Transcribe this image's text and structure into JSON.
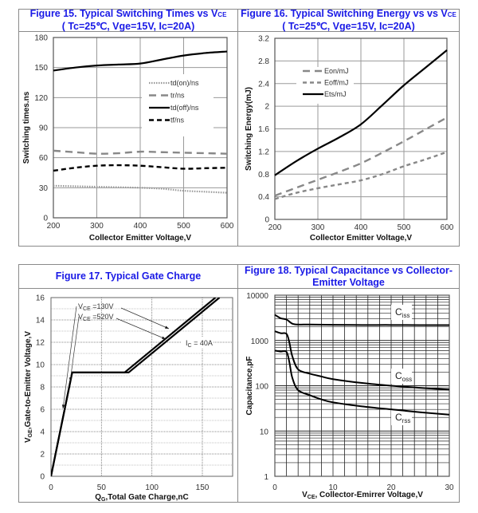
{
  "figures": {
    "fig15": {
      "title_line1": "Figure 15. Typical Switching Times vs V",
      "title_sub": "CE",
      "title_line2": "( Tc=25℃, Vge=15V, Ic=20A)"
    },
    "fig16": {
      "title_line1": "Figure 16. Typical Switching Energy vs vs V",
      "title_sub": "CE",
      "title_line2": "( Tc=25℃, Vge=15V, Ic=20A)"
    },
    "fig17": {
      "title_line1": "Figure 17. Typical Gate Charge"
    },
    "fig18": {
      "title_line1": "Figure 18. Typical Capacitance vs Collector-",
      "title_line2": "Emitter Voltage"
    }
  },
  "colors": {
    "title_blue": "#1a1ae6",
    "grid": "#9a9a9a",
    "black_series": "#000000",
    "gray_series": "#888888",
    "dotted_series": "#999999"
  },
  "chart_data": [
    {
      "id": "fig15",
      "type": "line",
      "title": "Figure 15. Typical Switching Times vs VCE ( Tc=25℃, Vge=15V, Ic=20A)",
      "xlabel": "Collector Emitter Voltage,V",
      "ylabel": "Switching times.ns",
      "xlim": [
        200,
        600
      ],
      "ylim": [
        0,
        180
      ],
      "xticks": [
        200,
        300,
        400,
        500,
        600
      ],
      "yticks": [
        0,
        30,
        60,
        90,
        120,
        150,
        180
      ],
      "grid": true,
      "legend": "center-right",
      "x": [
        200,
        250,
        300,
        350,
        400,
        450,
        500,
        550,
        600
      ],
      "series": [
        {
          "name": "td(on)/ns",
          "style": "dotted",
          "values": [
            32,
            31.5,
            31,
            30.5,
            30,
            29,
            27,
            26,
            25
          ]
        },
        {
          "name": "tr/ns",
          "style": "long-dash-gray",
          "values": [
            67,
            65.5,
            64,
            64.5,
            66,
            65.5,
            65,
            64.5,
            64
          ]
        },
        {
          "name": "td(off)/ns",
          "style": "solid",
          "values": [
            147,
            150,
            152,
            153,
            154,
            158,
            162,
            164.5,
            166
          ]
        },
        {
          "name": "tf/ns",
          "style": "dash-black",
          "values": [
            47,
            50,
            52,
            52.5,
            52,
            50.5,
            49,
            49.5,
            50
          ]
        }
      ]
    },
    {
      "id": "fig16",
      "type": "line",
      "title": "Figure 16. Typical Switching Energy vs vs VCE ( Tc=25℃, Vge=15V, Ic=20A)",
      "xlabel": "Collector Emitter Voltage,V",
      "ylabel": "Switching Energy(mJ)",
      "xlim": [
        200,
        600
      ],
      "ylim": [
        0,
        3.2
      ],
      "xticks": [
        200,
        300,
        400,
        500,
        600
      ],
      "yticks": [
        0,
        0.4,
        0.8,
        1.2,
        1.6,
        2,
        2.4,
        2.8,
        3.2
      ],
      "grid": true,
      "legend": "top-left",
      "x": [
        200,
        250,
        300,
        350,
        400,
        450,
        500,
        550,
        600
      ],
      "series": [
        {
          "name": "Eon/mJ",
          "style": "long-dash-gray",
          "values": [
            0.42,
            0.56,
            0.7,
            0.84,
            0.99,
            1.18,
            1.38,
            1.59,
            1.8
          ]
        },
        {
          "name": "Eoff/mJ",
          "style": "dash-gray",
          "values": [
            0.36,
            0.47,
            0.55,
            0.62,
            0.69,
            0.8,
            0.94,
            1.06,
            1.19
          ]
        },
        {
          "name": "Ets/mJ",
          "style": "solid",
          "values": [
            0.78,
            1.03,
            1.25,
            1.45,
            1.68,
            2.02,
            2.37,
            2.68,
            2.99
          ]
        }
      ]
    },
    {
      "id": "fig17",
      "type": "line",
      "title": "Figure 17. Typical Gate Charge",
      "xlabel": "QG,Total Gate Charge,nC",
      "ylabel": "VGE,Gate-to-Emitter Voltage,V",
      "xlim": [
        0,
        180
      ],
      "ylim": [
        0,
        16
      ],
      "xticks": [
        0,
        50,
        100,
        150
      ],
      "yticks": [
        0,
        2,
        4,
        6,
        8,
        10,
        12,
        14,
        16
      ],
      "grid": true,
      "series": [
        {
          "name": "VCE =130V",
          "x": [
            0,
            21,
            73,
            163
          ],
          "values": [
            0,
            9.3,
            9.3,
            16
          ]
        },
        {
          "name": "VCE =520V",
          "x": [
            0,
            21,
            77,
            167
          ],
          "values": [
            0,
            9.3,
            9.3,
            16
          ]
        }
      ],
      "annotations": [
        {
          "text": "VCE =130V"
        },
        {
          "text": "VCE =520V"
        },
        {
          "text": "IC = 40A"
        }
      ]
    },
    {
      "id": "fig18",
      "type": "line",
      "title": "Figure 18. Typical Capacitance vs Collector-Emitter Voltage",
      "xlabel": "VCE, Collector-Emirrer Voltage,V",
      "ylabel": "Capacitance,pF",
      "xscale": "linear",
      "yscale": "log",
      "xlim": [
        0,
        30
      ],
      "ylim": [
        1,
        10000
      ],
      "xticks": [
        0,
        10,
        20,
        30
      ],
      "yticks": [
        1,
        10,
        100,
        1000,
        10000
      ],
      "grid": true,
      "series": [
        {
          "name": "Ciss",
          "x": [
            0,
            1,
            2,
            3,
            4,
            6,
            10,
            15,
            20,
            25,
            30
          ],
          "values": [
            3700,
            3100,
            2900,
            2350,
            2250,
            2250,
            2220,
            2200,
            2200,
            2180,
            2180
          ]
        },
        {
          "name": "Coss",
          "x": [
            0,
            1,
            2,
            2.5,
            3,
            4,
            6,
            8,
            10,
            15,
            20,
            25,
            30
          ],
          "values": [
            1600,
            1450,
            1400,
            900,
            450,
            230,
            185,
            160,
            140,
            115,
            100,
            90,
            82
          ]
        },
        {
          "name": "Crss",
          "x": [
            0,
            1,
            2,
            2.5,
            3,
            4,
            6,
            8,
            10,
            15,
            20,
            25,
            30
          ],
          "values": [
            600,
            570,
            560,
            330,
            150,
            80,
            62,
            50,
            43,
            35,
            30,
            26,
            23
          ]
        }
      ]
    }
  ],
  "labels": {
    "fig15_legend": [
      "td(on)/ns",
      "tr/ns",
      "td(off)/ns",
      "tf/ns"
    ],
    "fig16_legend": [
      "Eon/mJ",
      "Eoff/mJ",
      "Ets/mJ"
    ],
    "fig17_ann": {
      "v130_main": "V",
      "v130_sub": "CE",
      "v130_rest": " =130V",
      "v520_main": "V",
      "v520_sub": "CE",
      "v520_rest": " =520V",
      "ic_main": "I",
      "ic_sub": "C",
      "ic_rest": " = 40A"
    },
    "fig17_xlabel": {
      "main": "Q",
      "sub": "G",
      "rest": ",Total Gate Charge,nC"
    },
    "fig17_ylabel": {
      "main": "V",
      "sub": "GE",
      "rest": ",Gate-to-Emitter Voltage,V"
    },
    "fig18_xlabel": {
      "main": "V",
      "sub": "CE",
      "rest": ", Collector-Emirrer Voltage,V"
    },
    "fig18_curve_labels": [
      {
        "main": "C",
        "sub": "iss"
      },
      {
        "main": "C",
        "sub": "oss"
      },
      {
        "main": "C",
        "sub": "rss"
      }
    ]
  }
}
